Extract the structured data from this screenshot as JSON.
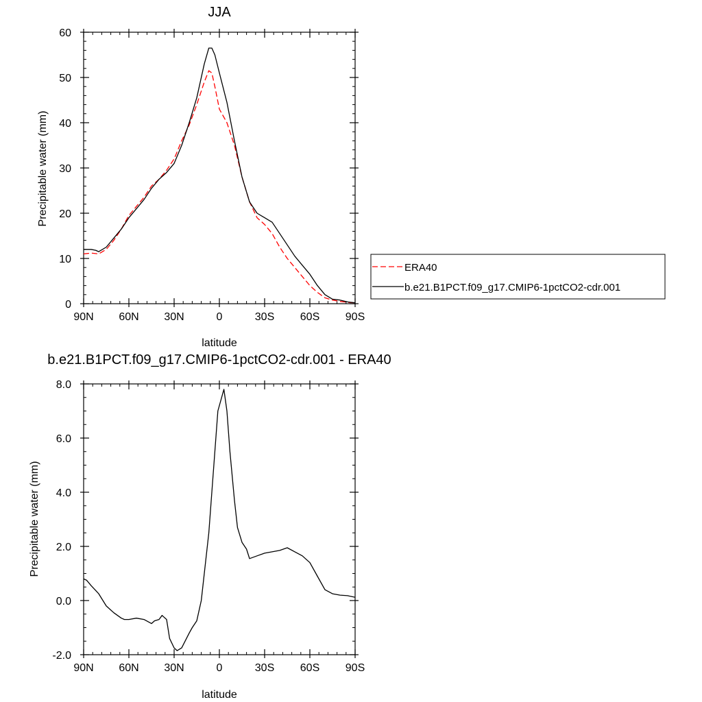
{
  "chart_data": [
    {
      "type": "line",
      "title": "JJA",
      "xlabel": "latitude",
      "ylabel": "Precipitable water (mm)",
      "xlim": [
        90,
        -90
      ],
      "ylim": [
        0,
        60
      ],
      "x_ticks": [
        90,
        60,
        30,
        0,
        -30,
        -60,
        -90
      ],
      "x_tick_labels": [
        "90N",
        "60N",
        "30N",
        "0",
        "30S",
        "60S",
        "90S"
      ],
      "y_ticks": [
        0,
        10,
        20,
        30,
        40,
        50,
        60
      ],
      "y_tick_labels": [
        "0",
        "10",
        "20",
        "30",
        "40",
        "50",
        "60"
      ],
      "legend": "right",
      "series": [
        {
          "name": "ERA40",
          "color": "#ff0000",
          "dash": true,
          "x": [
            90,
            85,
            80,
            75,
            70,
            65,
            60,
            55,
            50,
            45,
            40,
            35,
            30,
            25,
            20,
            15,
            10,
            7,
            5,
            3,
            0,
            -5,
            -10,
            -15,
            -20,
            -25,
            -30,
            -35,
            -40,
            -45,
            -50,
            -55,
            -60,
            -65,
            -70,
            -75,
            -80,
            -85,
            -90
          ],
          "y": [
            11,
            11.2,
            11,
            12,
            14,
            16.5,
            19.5,
            21.5,
            23.5,
            26,
            27.5,
            29.5,
            32,
            36,
            39.5,
            44,
            49,
            51.5,
            51,
            48,
            43,
            40,
            35,
            28,
            22.5,
            19,
            17.5,
            15.5,
            12.5,
            10,
            8,
            6,
            4,
            2.5,
            1.3,
            0.8,
            0.5,
            0.3,
            0.2
          ]
        },
        {
          "name": "b.e21.B1PCT.f09_g17.CMIP6-1pctCO2-cdr.001",
          "color": "#000000",
          "dash": false,
          "x": [
            90,
            85,
            82,
            80,
            75,
            70,
            65,
            60,
            55,
            50,
            45,
            40,
            35,
            30,
            25,
            20,
            15,
            10,
            7,
            5,
            3,
            0,
            -5,
            -10,
            -15,
            -20,
            -25,
            -30,
            -35,
            -40,
            -45,
            -50,
            -55,
            -60,
            -65,
            -70,
            -75,
            -80,
            -85,
            -90
          ],
          "y": [
            12,
            12,
            11.8,
            11.5,
            12.5,
            14.5,
            16.5,
            19,
            21,
            23,
            25.5,
            27.5,
            29,
            31,
            35,
            40,
            45.5,
            53,
            56.5,
            56.5,
            55,
            51,
            44.5,
            36,
            28,
            22.5,
            20,
            19,
            18,
            15.5,
            13,
            10.5,
            8.5,
            6.5,
            4,
            2,
            1,
            0.8,
            0.4,
            0.2
          ]
        }
      ]
    },
    {
      "type": "line",
      "title": "b.e21.B1PCT.f09_g17.CMIP6-1pctCO2-cdr.001 - ERA40",
      "xlabel": "latitude",
      "ylabel": "Precipitable water (mm)",
      "xlim": [
        90,
        -90
      ],
      "ylim": [
        -2,
        8
      ],
      "x_ticks": [
        90,
        60,
        30,
        0,
        -30,
        -60,
        -90
      ],
      "x_tick_labels": [
        "90N",
        "60N",
        "30N",
        "0",
        "30S",
        "60S",
        "90S"
      ],
      "y_ticks": [
        -2,
        0,
        2,
        4,
        6,
        8
      ],
      "y_tick_labels": [
        "-2.0",
        "0.0",
        "2.0",
        "4.0",
        "6.0",
        "8.0"
      ],
      "series": [
        {
          "color": "#000000",
          "dash": false,
          "x": [
            90,
            88,
            85,
            80,
            75,
            70,
            65,
            63,
            60,
            55,
            50,
            45,
            43,
            40,
            38,
            35,
            33,
            30,
            28,
            25,
            20,
            18,
            15,
            12,
            10,
            7,
            5,
            3,
            1,
            -3,
            -5,
            -7,
            -10,
            -12,
            -15,
            -18,
            -20,
            -25,
            -30,
            -35,
            -40,
            -45,
            -50,
            -55,
            -60,
            -65,
            -70,
            -75,
            -80,
            -85,
            -90
          ],
          "y": [
            0.8,
            0.75,
            0.55,
            0.25,
            -0.2,
            -0.45,
            -0.65,
            -0.7,
            -0.7,
            -0.65,
            -0.7,
            -0.85,
            -0.75,
            -0.7,
            -0.55,
            -0.7,
            -1.4,
            -1.75,
            -1.85,
            -1.75,
            -1.2,
            -1.0,
            -0.75,
            0,
            1.0,
            2.5,
            4.0,
            5.5,
            7.0,
            7.8,
            7.0,
            5.5,
            3.7,
            2.7,
            2.15,
            1.9,
            1.55,
            1.65,
            1.75,
            1.8,
            1.85,
            1.95,
            1.8,
            1.65,
            1.4,
            0.9,
            0.4,
            0.25,
            0.2,
            0.18,
            0.12
          ]
        }
      ]
    }
  ]
}
